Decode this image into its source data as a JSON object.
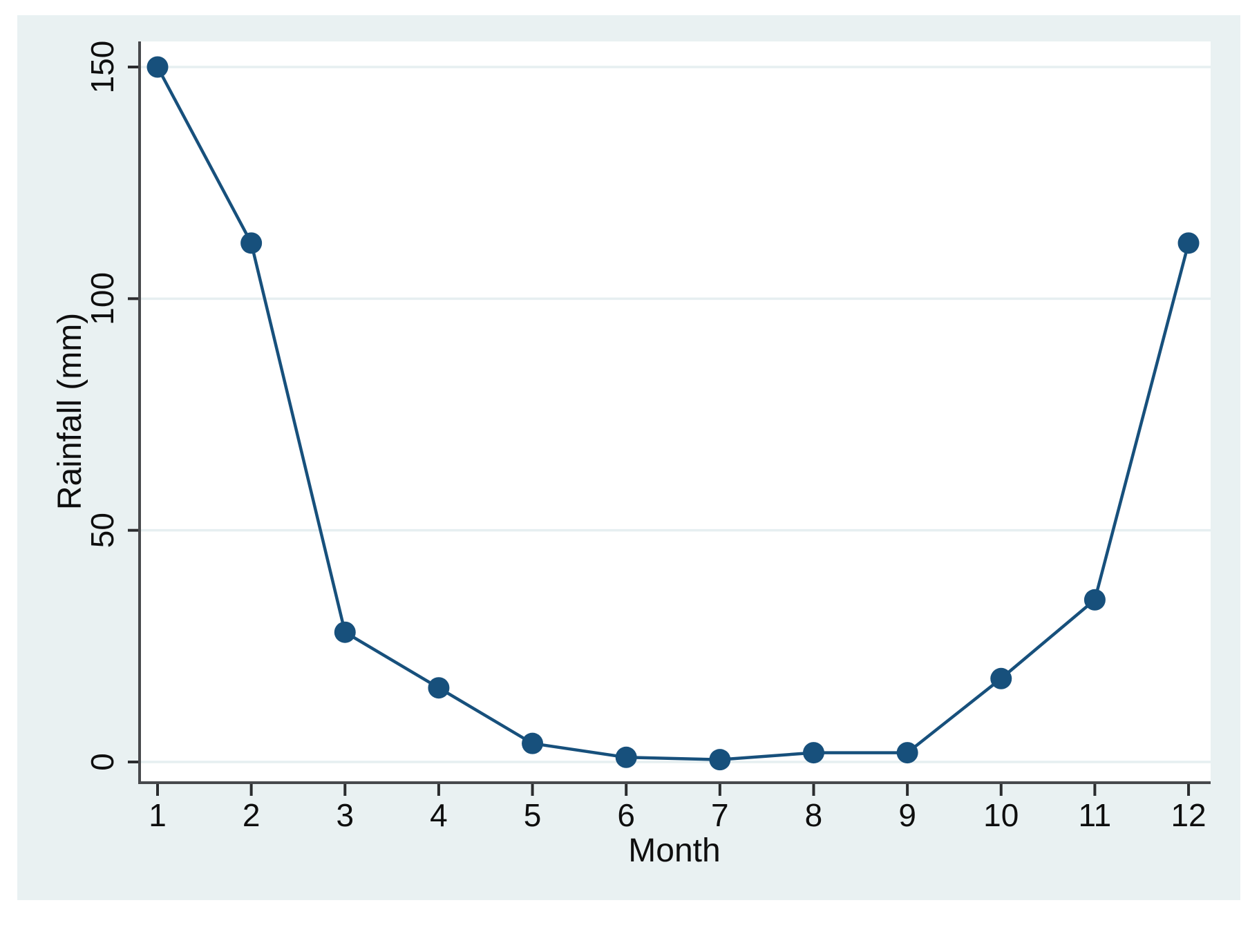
{
  "figure": {
    "canvas_background": "#ffffff",
    "figure_background": "#e9f1f2",
    "plot_background": "#ffffff",
    "grid_color": "#e6eff1",
    "axis_color": "#47494c",
    "tick_color": "#2a2c2e",
    "label_color": "#0e0e0e"
  },
  "chart_data": {
    "type": "line",
    "title": "",
    "xlabel": "Month",
    "ylabel": "Rainfall (mm)",
    "x": [
      1,
      2,
      3,
      4,
      5,
      6,
      7,
      8,
      9,
      10,
      11,
      12
    ],
    "xtick_labels": [
      "1",
      "2",
      "3",
      "4",
      "5",
      "6",
      "7",
      "8",
      "9",
      "10",
      "11",
      "12"
    ],
    "yticks": [
      0,
      50,
      100,
      150
    ],
    "ytick_labels": [
      "0",
      "50",
      "100",
      "150"
    ],
    "xlim": [
      1,
      12
    ],
    "ylim": [
      0,
      150
    ],
    "grid": "horizontal-only",
    "legend": "none",
    "series": [
      {
        "name": "Rainfall (mm)",
        "color": "#17507c",
        "marker": "circle",
        "values": [
          150,
          112,
          28,
          16,
          4,
          1,
          0.5,
          2,
          2,
          18,
          35,
          112
        ]
      }
    ]
  }
}
